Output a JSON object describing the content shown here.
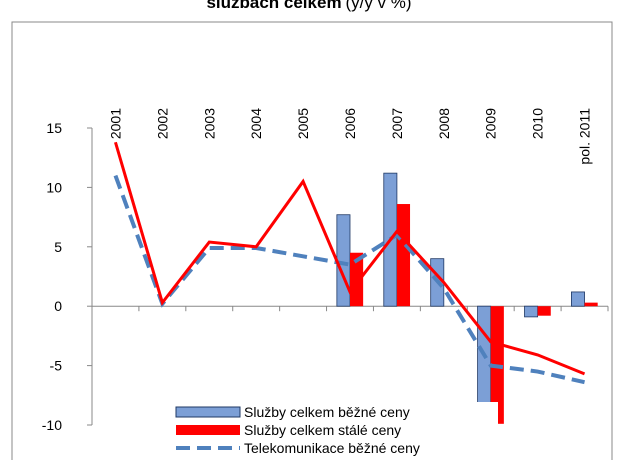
{
  "chart_data": {
    "type": "bar_line",
    "title_bold": "službách celkem",
    "title_rest": "(y/y v %)",
    "categories": [
      "2001",
      "2002",
      "2003",
      "2004",
      "2005",
      "2006",
      "2007",
      "2008",
      "2009",
      "2010",
      "pol. 2011"
    ],
    "ylim": [
      -10,
      15
    ],
    "yticks": [
      -10,
      -5,
      0,
      5,
      10,
      15
    ],
    "series": [
      {
        "name": "Služby celkem běžné ceny",
        "kind": "bar",
        "color": "#7c9fd6",
        "values": [
          null,
          null,
          null,
          null,
          null,
          7.7,
          11.2,
          4.0,
          -10.2,
          -0.9,
          1.2
        ]
      },
      {
        "name": "Služby celkem stálé ceny",
        "kind": "bar",
        "color": "#ff0000",
        "values": [
          null,
          null,
          null,
          null,
          null,
          4.5,
          8.6,
          null,
          -9.9,
          -0.8,
          0.3
        ]
      },
      {
        "name": "Telekomunikace běžné ceny",
        "kind": "dashed-line",
        "color": "#4f81bd",
        "values": [
          11.0,
          0.2,
          4.9,
          4.9,
          4.2,
          3.5,
          6.0,
          1.5,
          -5.0,
          -5.5,
          -6.4
        ]
      },
      {
        "kind": "line",
        "color": "#ff0000",
        "values": [
          13.8,
          0.3,
          5.4,
          5.0,
          10.5,
          1.2,
          6.3,
          2.0,
          -3.0,
          -4.1,
          -5.7
        ]
      }
    ]
  }
}
